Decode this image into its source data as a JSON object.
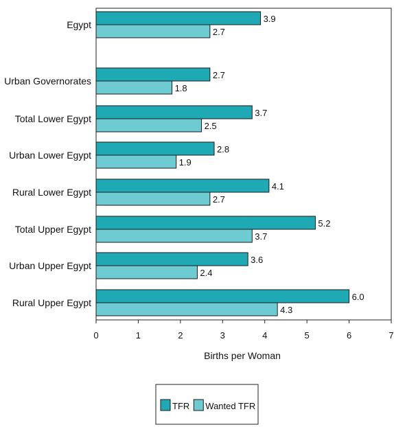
{
  "chart_data": {
    "type": "bar",
    "orientation": "horizontal",
    "categories": [
      "Egypt",
      "Urban Governorates",
      "Total Lower Egypt",
      "Urban Lower Egypt",
      "Rural Lower Egypt",
      "Total Upper Egypt",
      "Urban Upper Egypt",
      "Rural Upper Egypt"
    ],
    "series": [
      {
        "name": "TFR",
        "values": [
          3.9,
          2.7,
          3.7,
          2.8,
          4.1,
          5.2,
          3.6,
          6.0
        ],
        "labels": [
          "3.9",
          "2.7",
          "3.7",
          "2.8",
          "4.1",
          "5.2",
          "3.6",
          "6.0"
        ],
        "color": "#1fa9b5"
      },
      {
        "name": "Wanted TFR",
        "values": [
          2.7,
          1.8,
          2.5,
          1.9,
          2.7,
          3.7,
          2.4,
          4.3
        ],
        "labels": [
          "2.7",
          "1.8",
          "2.5",
          "1.9",
          "2.7",
          "3.7",
          "2.4",
          "4.3"
        ],
        "color": "#6fcbd2"
      }
    ],
    "title": "",
    "xlabel": "Births per Woman",
    "ylabel": "",
    "xlim": [
      0,
      7
    ],
    "xticks": [
      "0",
      "1",
      "2",
      "3",
      "4",
      "5",
      "6",
      "7"
    ],
    "grid": false,
    "legend_position": "bottom-center"
  }
}
